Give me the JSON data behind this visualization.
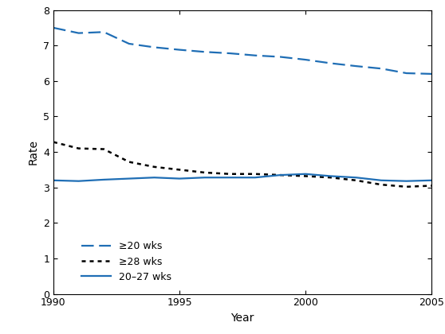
{
  "years": [
    1990,
    1991,
    1992,
    1993,
    1994,
    1995,
    1996,
    1997,
    1998,
    1999,
    2000,
    2001,
    2002,
    2003,
    2004,
    2005
  ],
  "ge20_wks": [
    7.5,
    7.35,
    7.38,
    7.05,
    6.95,
    6.88,
    6.82,
    6.78,
    6.72,
    6.68,
    6.6,
    6.5,
    6.42,
    6.35,
    6.22,
    6.2
  ],
  "ge28_wks": [
    4.28,
    4.1,
    4.08,
    3.72,
    3.58,
    3.5,
    3.42,
    3.38,
    3.38,
    3.35,
    3.32,
    3.28,
    3.2,
    3.08,
    3.02,
    3.05
  ],
  "wks20_27": [
    3.2,
    3.18,
    3.22,
    3.25,
    3.28,
    3.25,
    3.28,
    3.28,
    3.28,
    3.35,
    3.38,
    3.32,
    3.28,
    3.2,
    3.18,
    3.2
  ],
  "ge20_color": "#1f6eb5",
  "ge28_color": "#000000",
  "wks20_27_color": "#1f6eb5",
  "xlabel": "Year",
  "ylabel": "Rate",
  "xlim": [
    1990,
    2005
  ],
  "ylim": [
    0,
    8
  ],
  "yticks": [
    0,
    1,
    2,
    3,
    4,
    5,
    6,
    7,
    8
  ],
  "xticks": [
    1990,
    1995,
    2000,
    2005
  ],
  "legend_labels": [
    "≥20 wks",
    "≥28 wks",
    "20–27 wks"
  ],
  "background_color": "#ffffff"
}
